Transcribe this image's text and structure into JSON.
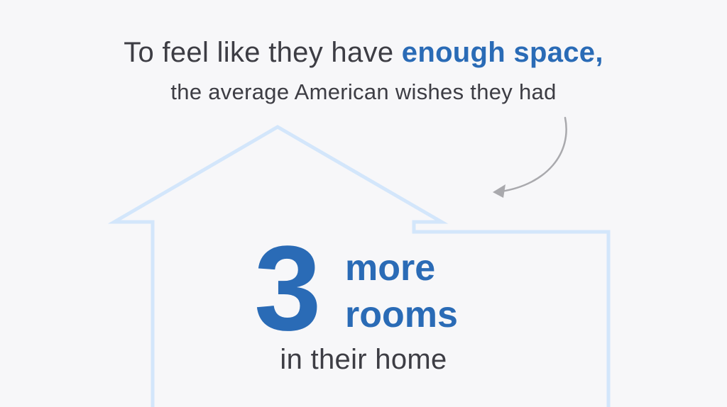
{
  "headline": {
    "prefix": "To feel like they have ",
    "emphasis": "enough space,"
  },
  "subline": "the average American wishes they had",
  "stat": {
    "number": "3",
    "line1": "more",
    "line2": "rooms",
    "caption": "in their home"
  },
  "colors": {
    "accent": "#2a6bb6",
    "text": "#3d3d44",
    "house_outline": "#d3e6fb",
    "arrow": "#a9a9ad",
    "background": "#f7f7f9"
  },
  "icons": {
    "arrow": "curved-arrow-icon",
    "house": "house-outline-icon"
  }
}
